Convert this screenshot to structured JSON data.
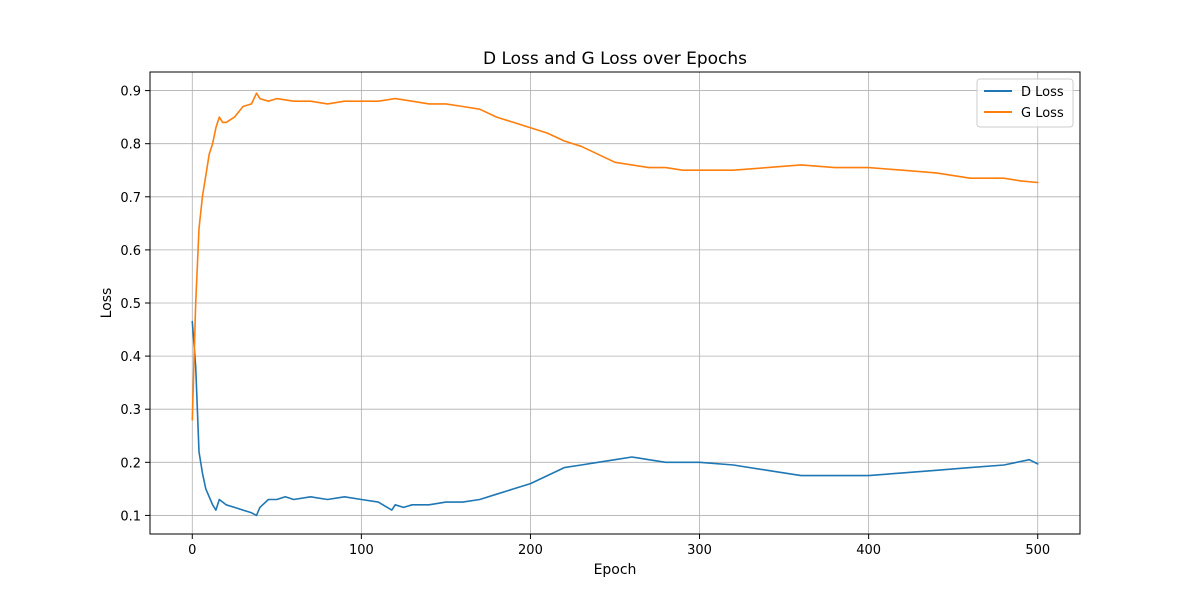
{
  "chart_data": {
    "type": "line",
    "title": "D Loss and G Loss over Epochs",
    "xlabel": "Epoch",
    "ylabel": "Loss",
    "xlim": [
      -25,
      525
    ],
    "ylim": [
      0.065,
      0.935
    ],
    "xticks": [
      0,
      100,
      200,
      300,
      400,
      500
    ],
    "yticks": [
      0.1,
      0.2,
      0.3,
      0.4,
      0.5,
      0.6,
      0.7,
      0.8,
      0.9
    ],
    "grid": true,
    "legend_position": "top-right",
    "series": [
      {
        "name": "D Loss",
        "color": "#1f77b4",
        "x": [
          0,
          2,
          4,
          6,
          8,
          10,
          12,
          14,
          16,
          18,
          20,
          25,
          30,
          35,
          38,
          40,
          45,
          50,
          55,
          60,
          70,
          80,
          90,
          100,
          110,
          118,
          120,
          125,
          130,
          140,
          150,
          160,
          170,
          180,
          190,
          200,
          210,
          220,
          230,
          240,
          250,
          260,
          270,
          280,
          290,
          300,
          320,
          340,
          360,
          380,
          400,
          420,
          440,
          460,
          480,
          495,
          500
        ],
        "y": [
          0.465,
          0.38,
          0.22,
          0.18,
          0.15,
          0.135,
          0.12,
          0.11,
          0.13,
          0.125,
          0.12,
          0.115,
          0.11,
          0.105,
          0.1,
          0.115,
          0.13,
          0.13,
          0.135,
          0.13,
          0.135,
          0.13,
          0.135,
          0.13,
          0.125,
          0.11,
          0.12,
          0.115,
          0.12,
          0.12,
          0.125,
          0.125,
          0.13,
          0.14,
          0.15,
          0.16,
          0.175,
          0.19,
          0.195,
          0.2,
          0.205,
          0.21,
          0.205,
          0.2,
          0.2,
          0.2,
          0.195,
          0.185,
          0.175,
          0.175,
          0.175,
          0.18,
          0.185,
          0.19,
          0.195,
          0.205,
          0.197
        ]
      },
      {
        "name": "G Loss",
        "color": "#ff7f0e",
        "x": [
          0,
          2,
          4,
          6,
          8,
          10,
          12,
          14,
          16,
          18,
          20,
          25,
          30,
          35,
          38,
          40,
          45,
          50,
          60,
          70,
          80,
          90,
          100,
          110,
          120,
          130,
          140,
          150,
          160,
          170,
          180,
          190,
          200,
          210,
          220,
          230,
          240,
          250,
          260,
          270,
          280,
          290,
          300,
          320,
          340,
          360,
          380,
          400,
          420,
          440,
          460,
          480,
          490,
          500
        ],
        "y": [
          0.28,
          0.5,
          0.64,
          0.7,
          0.74,
          0.78,
          0.8,
          0.83,
          0.85,
          0.84,
          0.84,
          0.85,
          0.87,
          0.875,
          0.895,
          0.885,
          0.88,
          0.885,
          0.88,
          0.88,
          0.875,
          0.88,
          0.88,
          0.88,
          0.885,
          0.88,
          0.875,
          0.875,
          0.87,
          0.865,
          0.85,
          0.84,
          0.83,
          0.82,
          0.805,
          0.795,
          0.78,
          0.765,
          0.76,
          0.755,
          0.755,
          0.75,
          0.75,
          0.75,
          0.755,
          0.76,
          0.755,
          0.755,
          0.75,
          0.745,
          0.735,
          0.735,
          0.73,
          0.727
        ]
      }
    ]
  }
}
